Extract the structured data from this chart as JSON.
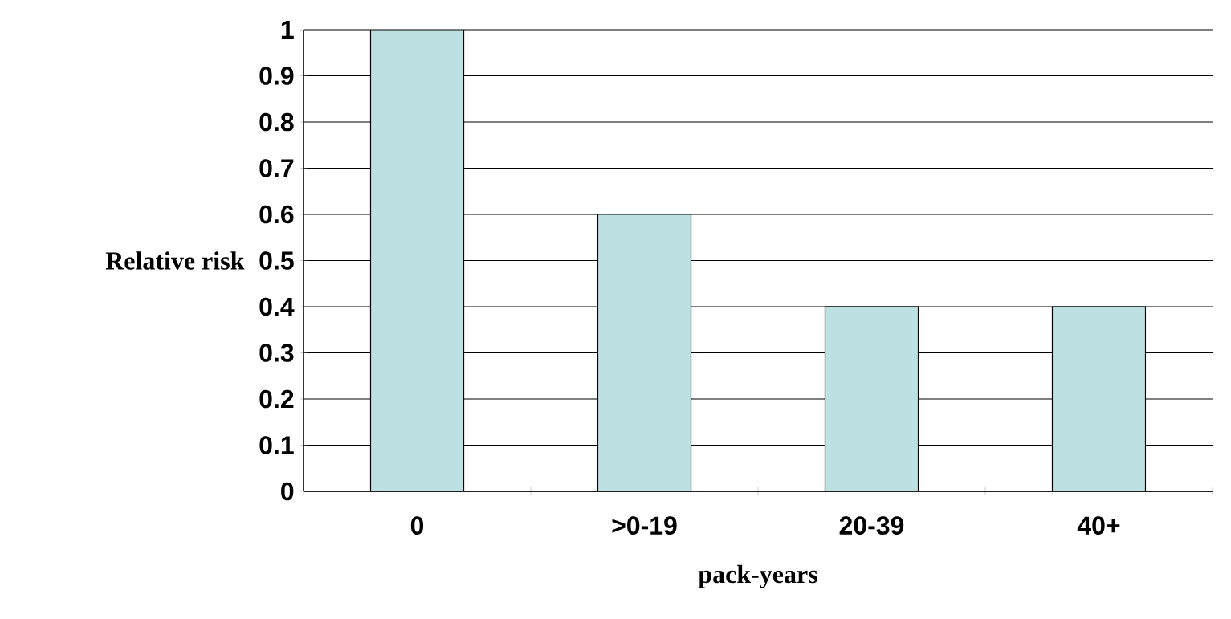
{
  "chart_data": {
    "type": "bar",
    "xlabel": "pack-years",
    "ylabel": "Relative risk",
    "categories": [
      "0",
      ">0-19",
      "20-39",
      "40+"
    ],
    "values": [
      1,
      0.6,
      0.4,
      0.4
    ],
    "color": "#bde1e3",
    "ylim": [
      0,
      1
    ],
    "yticks": [
      0,
      0.1,
      0.2,
      0.3,
      0.4,
      0.5,
      0.6,
      0.7,
      0.8,
      0.9,
      1
    ],
    "grid": "y"
  }
}
